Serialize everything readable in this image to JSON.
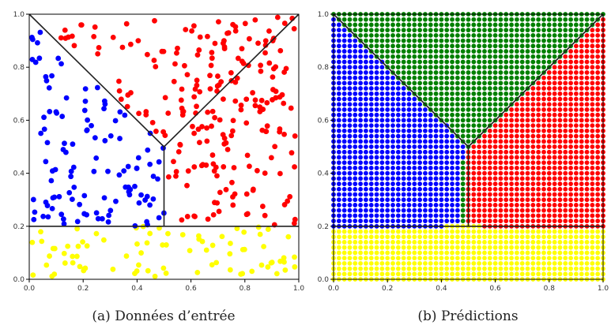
{
  "chart_data": [
    {
      "type": "scatter",
      "caption": "(a) Données d’entrée",
      "xlim": [
        0,
        1
      ],
      "ylim": [
        0,
        1
      ],
      "xticks": [
        "0.0",
        "0.2",
        "0.4",
        "0.6",
        "0.8",
        "1.0"
      ],
      "yticks": [
        "0.0",
        "0.2",
        "0.4",
        "0.6",
        "0.8",
        "1.0"
      ],
      "grid": false,
      "class_colors": {
        "left": "#0000ff",
        "top": "#ff0000",
        "right": "#ff0000",
        "bottom": "#ffff00"
      },
      "boundaries": [
        {
          "x": [
            0.0,
            0.5
          ],
          "y": [
            0.2,
            0.2
          ]
        },
        {
          "x": [
            0.5,
            1.0
          ],
          "y": [
            0.2,
            0.2
          ]
        },
        {
          "x": [
            0.5,
            0.5
          ],
          "y": [
            0.2,
            0.5
          ]
        },
        {
          "x": [
            0.0,
            0.5
          ],
          "y": [
            1.0,
            0.5
          ]
        },
        {
          "x": [
            0.5,
            1.0
          ],
          "y": [
            0.5,
            1.0
          ]
        }
      ],
      "sample_points": 420
    },
    {
      "type": "scatter",
      "caption": "(b) Prédictions",
      "xlim": [
        0,
        1
      ],
      "ylim": [
        0,
        1
      ],
      "xticks": [
        "0.0",
        "0.2",
        "0.4",
        "0.6",
        "0.8",
        "1.0"
      ],
      "yticks": [
        "0.0",
        "0.2",
        "0.4",
        "0.6",
        "0.8",
        "1.0"
      ],
      "grid": false,
      "class_colors": {
        "left": "#0000ff",
        "top": "#008000",
        "right": "#ff0000",
        "bottom": "#ffff00"
      },
      "boundaries": [
        {
          "x": [
            0.0,
            0.5
          ],
          "y": [
            0.2,
            0.2
          ]
        },
        {
          "x": [
            0.5,
            1.0
          ],
          "y": [
            0.2,
            0.2
          ]
        },
        {
          "x": [
            0.5,
            0.5
          ],
          "y": [
            0.2,
            0.5
          ]
        },
        {
          "x": [
            0.0,
            0.5
          ],
          "y": [
            1.0,
            0.5
          ]
        },
        {
          "x": [
            0.5,
            1.0
          ],
          "y": [
            0.5,
            1.0
          ]
        }
      ],
      "grid_resolution": 51
    }
  ]
}
